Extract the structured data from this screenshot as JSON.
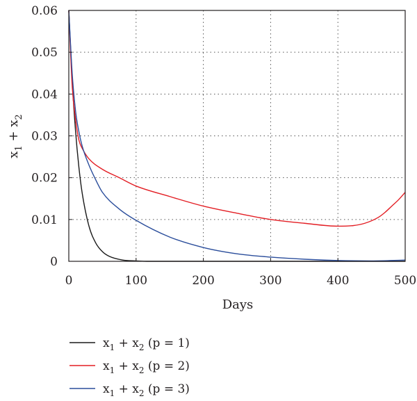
{
  "chart_data": {
    "type": "line",
    "xlabel": "Days",
    "ylabel": "x1 + x2",
    "xlim": [
      0,
      500
    ],
    "ylim": [
      0,
      0.06
    ],
    "xticks": [
      "0",
      "100",
      "200",
      "300",
      "400",
      "500"
    ],
    "yticks": [
      "0",
      "0.01",
      "0.02",
      "0.03",
      "0.04",
      "0.05",
      "0.06"
    ],
    "grid": "dotted",
    "legend_position": "bottom-left",
    "series": [
      {
        "name": "x1 + x2 (p = 1)",
        "color": "#1a1a1a",
        "x": [
          0,
          5,
          10,
          15,
          20,
          30,
          40,
          50,
          60,
          80,
          100,
          120,
          150,
          200,
          300,
          400,
          500
        ],
        "y": [
          0.06,
          0.0432,
          0.0312,
          0.0225,
          0.0162,
          0.0084,
          0.0044,
          0.0023,
          0.0012,
          0.0003,
          0.0001,
          0,
          0,
          0,
          0,
          0,
          0
        ]
      },
      {
        "name": "x1 + x2 (p = 2)",
        "color": "#e31e24",
        "x": [
          0,
          5,
          10,
          15,
          20,
          30,
          50,
          75,
          100,
          150,
          200,
          250,
          300,
          350,
          400,
          420,
          440,
          460,
          470,
          480,
          490,
          500
        ],
        "y": [
          0.06,
          0.042,
          0.034,
          0.029,
          0.027,
          0.0245,
          0.022,
          0.02,
          0.018,
          0.0155,
          0.0132,
          0.0115,
          0.01,
          0.0091,
          0.0084,
          0.0085,
          0.0091,
          0.0105,
          0.0117,
          0.0132,
          0.0147,
          0.0165
        ]
      },
      {
        "name": "x1 + x2 (p = 3)",
        "color": "#2a4d9b",
        "x": [
          0,
          5,
          10,
          15,
          20,
          30,
          40,
          50,
          75,
          100,
          150,
          200,
          250,
          300,
          350,
          400,
          450,
          500
        ],
        "y": [
          0.06,
          0.045,
          0.036,
          0.031,
          0.0275,
          0.023,
          0.0195,
          0.0165,
          0.0125,
          0.0098,
          0.0058,
          0.0033,
          0.0018,
          0.001,
          0.0005,
          0.0002,
          0.0001,
          0.0003
        ]
      }
    ]
  }
}
